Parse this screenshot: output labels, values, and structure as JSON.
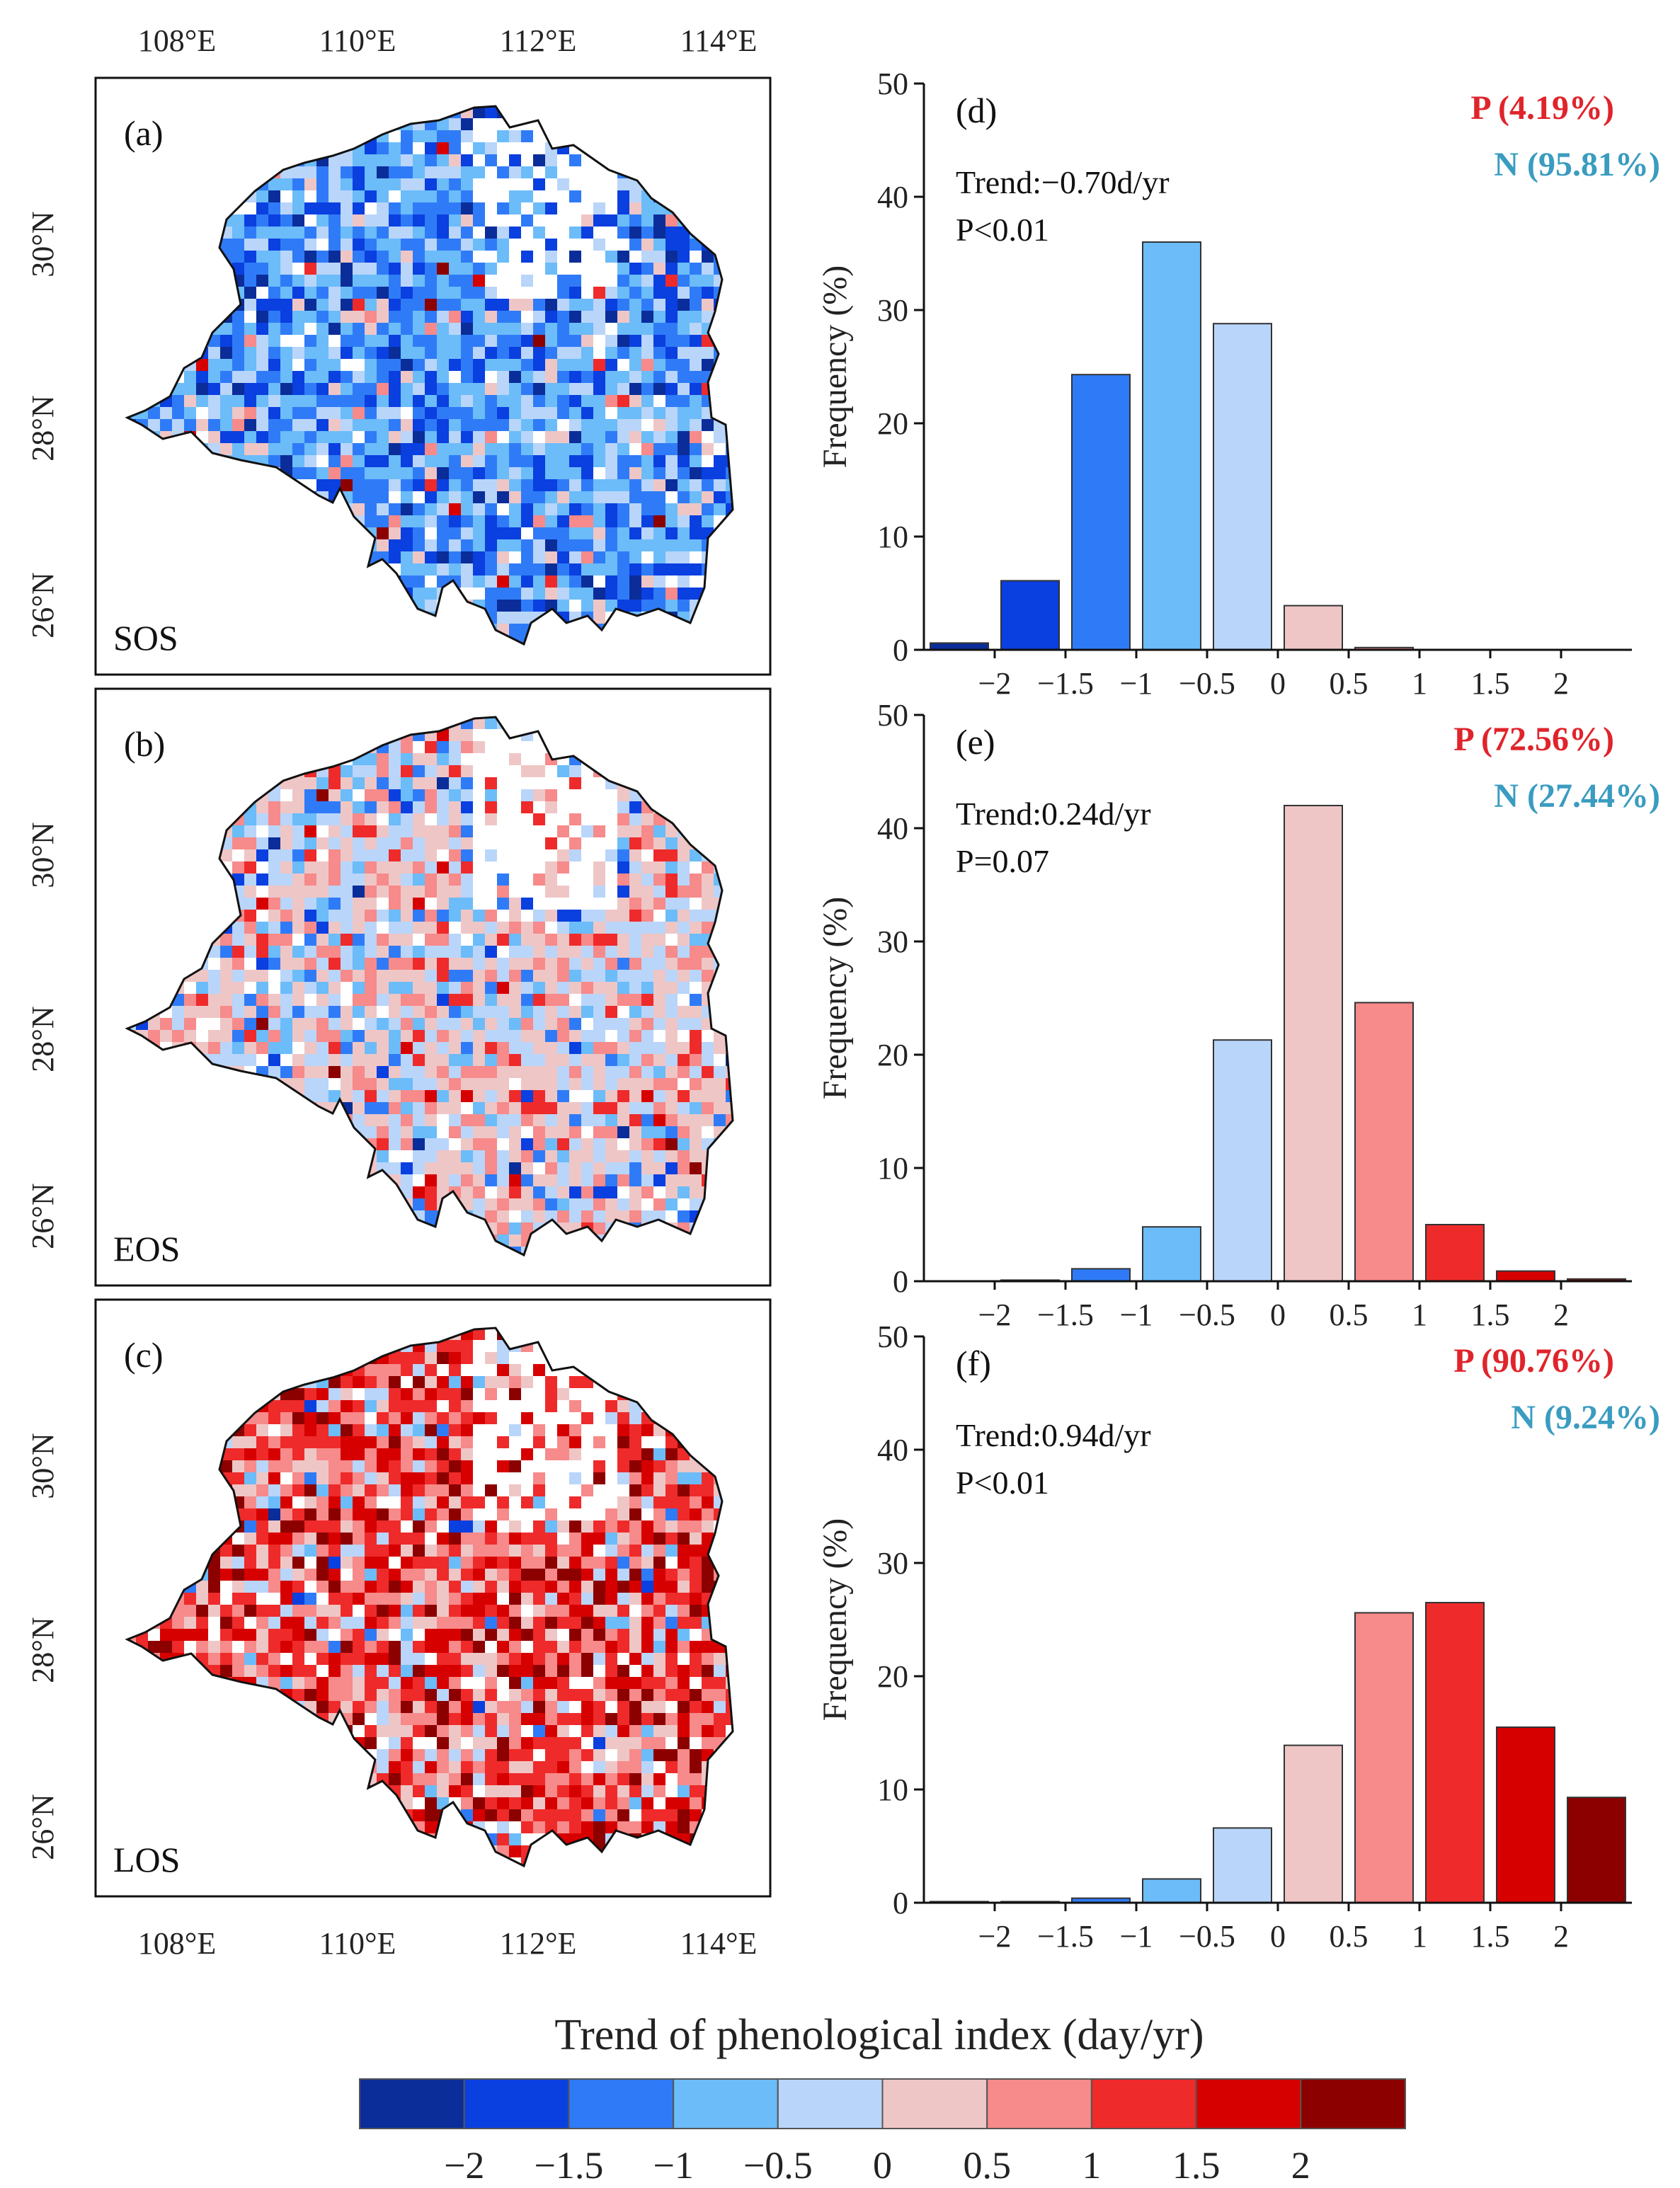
{
  "maps": {
    "lon_ticks": [
      "108°E",
      "110°E",
      "112°E",
      "114°E"
    ],
    "lat_ticks": [
      "30°N",
      "28°N",
      "26°N"
    ],
    "panels": [
      {
        "id": "a",
        "label": "(a)",
        "index_name": "SOS",
        "dominant_sign": "negative"
      },
      {
        "id": "b",
        "label": "(b)",
        "index_name": "EOS",
        "dominant_sign": "mixed-positive"
      },
      {
        "id": "c",
        "label": "(c)",
        "index_name": "LOS",
        "dominant_sign": "positive"
      }
    ]
  },
  "chart_data": [
    {
      "type": "bar",
      "panel": "(d)",
      "trend_text": "Trend:−0.70d/yr",
      "p_text": "P<0.01",
      "pos_text": "P (4.19%)",
      "neg_text": "N (95.81%)",
      "ylabel": "Frequency (%)",
      "xlabel": "",
      "ylim": [
        0,
        50
      ],
      "xlim": [
        -2.5,
        2.5
      ],
      "yticks": [
        "0",
        "10",
        "20",
        "30",
        "40",
        "50"
      ],
      "xticks": [
        "−2",
        "−1.5",
        "−1",
        "−0.5",
        "0",
        "0.5",
        "1",
        "1.5",
        "2"
      ],
      "bin_centers": [
        -2.25,
        -1.75,
        -1.25,
        -0.75,
        -0.25,
        0.25,
        0.75,
        1.25,
        1.75,
        2.25
      ],
      "values": [
        0.6,
        6.1,
        24.3,
        36.0,
        28.8,
        3.9,
        0.2,
        0,
        0,
        0
      ]
    },
    {
      "type": "bar",
      "panel": "(e)",
      "trend_text": "Trend:0.24d/yr",
      "p_text": "P=0.07",
      "pos_text": "P (72.56%)",
      "neg_text": "N (27.44%)",
      "ylabel": "Frequency (%)",
      "xlabel": "",
      "ylim": [
        0,
        50
      ],
      "xlim": [
        -2.5,
        2.5
      ],
      "yticks": [
        "0",
        "10",
        "20",
        "30",
        "40",
        "50"
      ],
      "xticks": [
        "−2",
        "−1.5",
        "−1",
        "−0.5",
        "0",
        "0.5",
        "1",
        "1.5",
        "2"
      ],
      "bin_centers": [
        -2.25,
        -1.75,
        -1.25,
        -0.75,
        -0.25,
        0.25,
        0.75,
        1.25,
        1.75,
        2.25
      ],
      "values": [
        0,
        0.1,
        1.1,
        4.8,
        21.3,
        42.0,
        24.6,
        5.0,
        0.9,
        0.2
      ]
    },
    {
      "type": "bar",
      "panel": "(f)",
      "trend_text": "Trend:0.94d/yr",
      "p_text": "P<0.01",
      "pos_text": "P (90.76%)",
      "neg_text": "N (9.24%)",
      "ylabel": "Frequency (%)",
      "xlabel": "",
      "ylim": [
        0,
        50
      ],
      "xlim": [
        -2.5,
        2.5
      ],
      "yticks": [
        "0",
        "10",
        "20",
        "30",
        "40",
        "50"
      ],
      "xticks": [
        "−2",
        "−1.5",
        "−1",
        "−0.5",
        "0",
        "0.5",
        "1",
        "1.5",
        "2"
      ],
      "bin_centers": [
        -2.25,
        -1.75,
        -1.25,
        -0.75,
        -0.25,
        0.25,
        0.75,
        1.25,
        1.75,
        2.25
      ],
      "values": [
        0.1,
        0.1,
        0.4,
        2.1,
        6.6,
        13.9,
        25.6,
        26.5,
        15.5,
        9.3
      ]
    }
  ],
  "colorbar": {
    "title": "Trend of phenological index (day/yr)",
    "tick_labels": [
      "−2",
      "−1.5",
      "−1",
      "−0.5",
      "0",
      "0.5",
      "1",
      "1.5",
      "2"
    ],
    "colors": [
      "#0a2d9a",
      "#0a3fe0",
      "#2f7bf7",
      "#6bbcf9",
      "#b9d5fa",
      "#efc6c6",
      "#f78a8a",
      "#ef2a2a",
      "#d70000",
      "#8c0000"
    ]
  },
  "colors": {
    "positive_text": "#e0242b",
    "negative_text": "#3a9cc0",
    "bar_edge": "#333333"
  }
}
